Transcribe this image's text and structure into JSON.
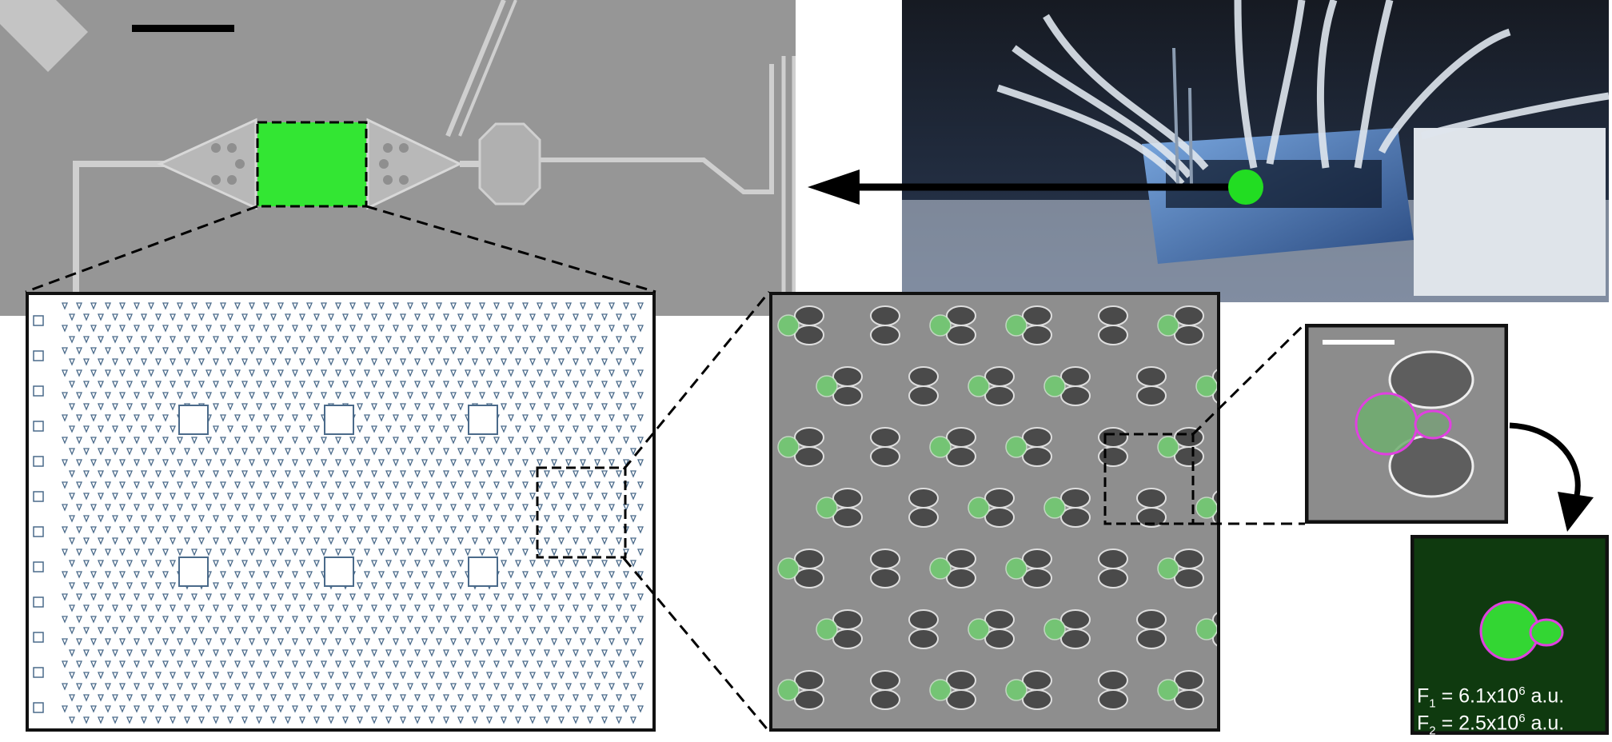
{
  "figure": {
    "fluorescence_readout": [
      {
        "label": "F",
        "subscript": "1",
        "prefix": " = 6.1x10",
        "exponent": "6",
        "unit": " a.u."
      },
      {
        "label": "F",
        "subscript": "2",
        "prefix": " = 2.5x10",
        "exponent": "6",
        "unit": " a.u."
      }
    ],
    "colors": {
      "highlight_green": "#33e633",
      "segmentation_outline": "#e040e0",
      "trap_stroke": "#4a6a8a",
      "fluorescence_background": "#0f3a0f"
    },
    "icons": [
      "scale-bar",
      "arrow-left-icon",
      "curved-arrow-icon"
    ]
  }
}
